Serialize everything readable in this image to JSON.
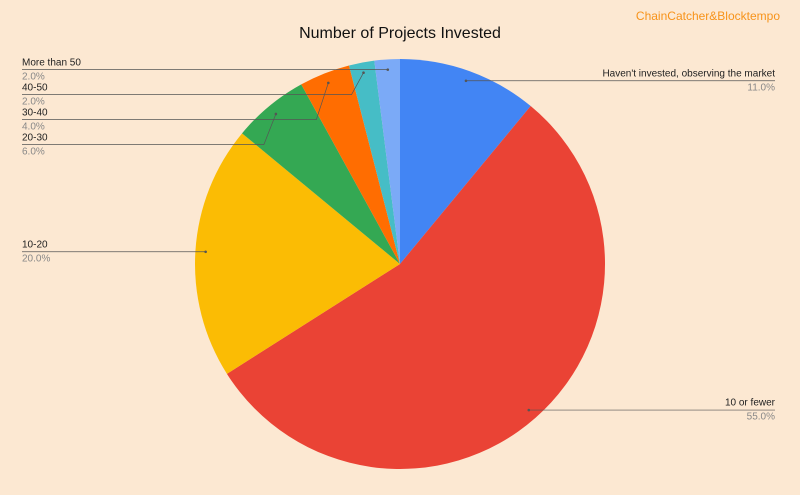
{
  "chart_data": {
    "type": "pie",
    "title": "Number of Projects Invested",
    "watermark": "ChainCatcher&Blocktempo",
    "categories": [
      "Haven't invested, observing the market",
      "10 or fewer",
      "10-20",
      "20-30",
      "30-40",
      "40-50",
      "More than 50"
    ],
    "values": [
      11,
      55,
      20,
      6,
      4,
      2,
      2
    ],
    "value_labels": [
      "11.0%",
      "55.0%",
      "20.0%",
      "6.0%",
      "4.0%",
      "2.0%",
      "2.0%"
    ],
    "colors": [
      "#4285f4",
      "#ea4335",
      "#fbbc04",
      "#34a853",
      "#ff6d01",
      "#46bdc6",
      "#7baaf7"
    ]
  }
}
